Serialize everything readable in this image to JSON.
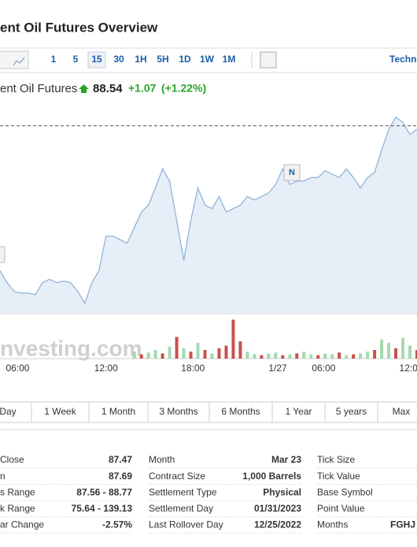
{
  "header": {
    "title": "ent Oil Futures Overview"
  },
  "toolbar": {
    "intervals": [
      "1",
      "5",
      "15",
      "30",
      "1H",
      "5H",
      "1D",
      "1W",
      "1M"
    ],
    "active": "15",
    "right": "Techn"
  },
  "quote": {
    "name": "ent Oil Futures",
    "price": 88.54,
    "change": "+1.07",
    "change_pct": "(+1.22%)"
  },
  "chart_data": {
    "type": "line",
    "color": "#8fb4d9",
    "fill": "#e6eef7",
    "values": [
      87.7,
      87.63,
      87.58,
      87.57,
      87.57,
      87.56,
      87.63,
      87.65,
      87.63,
      87.64,
      87.63,
      87.58,
      87.51,
      87.63,
      87.7,
      87.9,
      87.9,
      87.88,
      87.86,
      87.95,
      88.04,
      88.08,
      88.18,
      88.29,
      88.22,
      87.99,
      87.76,
      87.99,
      88.18,
      88.08,
      88.06,
      88.13,
      88.04,
      88.06,
      88.08,
      88.13,
      88.11,
      88.13,
      88.15,
      88.2,
      88.29,
      88.2,
      88.22,
      88.22,
      88.24,
      88.24,
      88.28,
      88.26,
      88.24,
      88.29,
      88.24,
      88.18,
      88.24,
      88.27,
      88.4,
      88.52,
      88.59,
      88.56,
      88.49,
      88.52
    ],
    "ylim": [
      87.45,
      88.63
    ],
    "xlim": [
      0,
      59
    ],
    "xticks": [
      {
        "value": 2.5,
        "label": "06:00"
      },
      {
        "value": 15,
        "label": "12:00"
      },
      {
        "value": 27.3,
        "label": "18:00"
      },
      {
        "value": 39.3,
        "label": "1/27"
      },
      {
        "value": 45.8,
        "label": "06:00"
      },
      {
        "value": 57.8,
        "label": "12:0"
      }
    ],
    "marker": "N",
    "watermark": "nvesting.com",
    "volume": [
      null,
      null,
      null,
      null,
      null,
      null,
      null,
      null,
      null,
      null,
      null,
      null,
      null,
      null,
      null,
      null,
      null,
      null,
      null,
      8,
      5,
      7,
      10,
      6,
      14,
      25,
      12,
      8,
      18,
      10,
      6,
      12,
      15,
      45,
      20,
      8,
      5,
      4,
      6,
      7,
      4,
      5,
      6,
      8,
      5,
      4,
      6,
      5,
      7,
      4,
      5,
      6,
      8,
      10,
      22,
      18,
      12,
      24,
      15,
      10
    ],
    "volume_colors": [
      null,
      null,
      null,
      null,
      null,
      null,
      null,
      null,
      null,
      null,
      null,
      null,
      null,
      null,
      null,
      null,
      null,
      null,
      null,
      "#a3d9ae",
      "#c9504d",
      "#a3d9ae",
      "#a3d9ae",
      "#c9504d",
      "#a3d9ae",
      "#c9504d",
      "#a3d9ae",
      "#c9504d",
      "#a3d9ae",
      "#c9504d",
      "#a3d9ae",
      "#c9504d",
      "#c9504d",
      "#c9504d",
      "#c9504d",
      "#a3d9ae",
      "#a3d9ae",
      "#c9504d",
      "#a3d9ae",
      "#a3d9ae",
      "#c9504d",
      "#a3d9ae",
      "#c9504d",
      "#a3d9ae",
      "#a3d9ae",
      "#c9504d",
      "#a3d9ae",
      "#a3d9ae",
      "#c9504d",
      "#a3d9ae",
      "#c9504d",
      "#a3d9ae",
      "#a3d9ae",
      "#c9504d",
      "#a3d9ae",
      "#a3d9ae",
      "#c9504d",
      "#a3d9ae",
      "#a3d9ae",
      "#c9504d"
    ],
    "volume_ylim": [
      0,
      50
    ]
  },
  "ranges": [
    "Day",
    "1 Week",
    "1 Month",
    "3 Months",
    "6 Months",
    "1 Year",
    "5 years",
    "Max"
  ],
  "table": {
    "rows": [
      [
        "Close",
        "87.47",
        "Month",
        "Mar 23",
        "Tick Size",
        ""
      ],
      [
        "n",
        "87.69",
        "Contract Size",
        "1,000 Barrels",
        "Tick Value",
        ""
      ],
      [
        "s Range",
        "87.56 - 88.77",
        "Settlement Type",
        "Physical",
        "Base Symbol",
        ""
      ],
      [
        "k Range",
        "75.64 - 139.13",
        "Settlement Day",
        "01/31/2023",
        "Point Value",
        ""
      ],
      [
        "ar Change",
        "-2.57%",
        "Last Rollover Day",
        "12/25/2022",
        "Months",
        "FGHJ"
      ]
    ]
  }
}
